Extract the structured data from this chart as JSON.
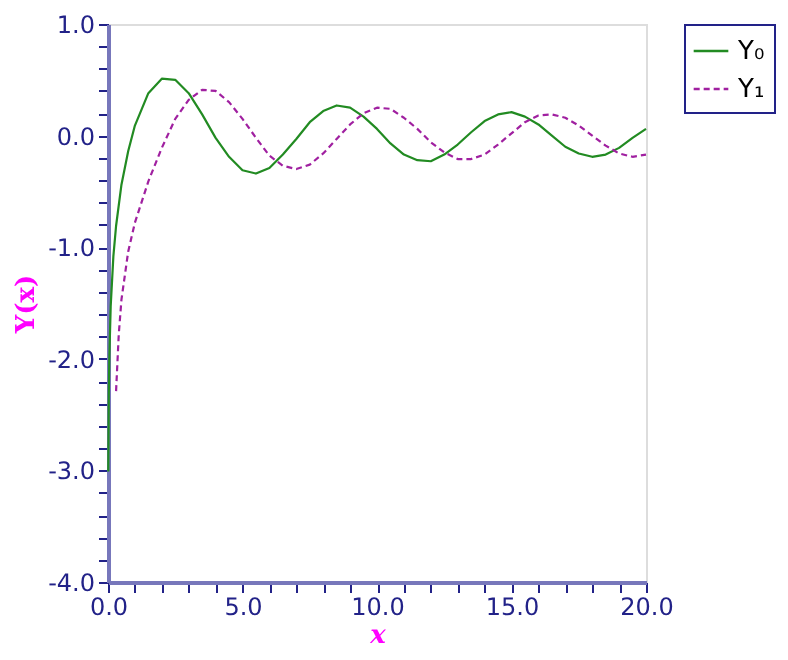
{
  "chart_data": {
    "type": "line",
    "xlabel": "x",
    "ylabel": "Y(x)",
    "xlim": [
      0,
      20
    ],
    "ylim": [
      -4,
      1
    ],
    "xticks": [
      {
        "value": 0,
        "label": "0.0"
      },
      {
        "value": 1,
        "label": null
      },
      {
        "value": 2,
        "label": null
      },
      {
        "value": 3,
        "label": null
      },
      {
        "value": 4,
        "label": null
      },
      {
        "value": 5,
        "label": "5.0"
      },
      {
        "value": 6,
        "label": null
      },
      {
        "value": 7,
        "label": null
      },
      {
        "value": 8,
        "label": null
      },
      {
        "value": 9,
        "label": null
      },
      {
        "value": 10,
        "label": "10.0"
      },
      {
        "value": 11,
        "label": null
      },
      {
        "value": 12,
        "label": null
      },
      {
        "value": 13,
        "label": null
      },
      {
        "value": 14,
        "label": null
      },
      {
        "value": 15,
        "label": "15.0"
      },
      {
        "value": 16,
        "label": null
      },
      {
        "value": 17,
        "label": null
      },
      {
        "value": 18,
        "label": null
      },
      {
        "value": 19,
        "label": null
      },
      {
        "value": 20,
        "label": "20.0"
      }
    ],
    "yticks": [
      {
        "value": -4,
        "label": "-4.0"
      },
      {
        "value": -3.8,
        "label": null
      },
      {
        "value": -3.6,
        "label": null
      },
      {
        "value": -3.4,
        "label": null
      },
      {
        "value": -3.2,
        "label": null
      },
      {
        "value": -3,
        "label": "-3.0"
      },
      {
        "value": -2.8,
        "label": null
      },
      {
        "value": -2.6,
        "label": null
      },
      {
        "value": -2.4,
        "label": null
      },
      {
        "value": -2.2,
        "label": null
      },
      {
        "value": -2,
        "label": "-2.0"
      },
      {
        "value": -1.8,
        "label": null
      },
      {
        "value": -1.6,
        "label": null
      },
      {
        "value": -1.4,
        "label": null
      },
      {
        "value": -1.2,
        "label": null
      },
      {
        "value": -1,
        "label": "-1.0"
      },
      {
        "value": -0.8,
        "label": null
      },
      {
        "value": -0.6,
        "label": null
      },
      {
        "value": -0.4,
        "label": null
      },
      {
        "value": -0.2,
        "label": null
      },
      {
        "value": 0,
        "label": "0.0"
      },
      {
        "value": 0.2,
        "label": null
      },
      {
        "value": 0.4,
        "label": null
      },
      {
        "value": 0.6,
        "label": null
      },
      {
        "value": 0.8,
        "label": null
      },
      {
        "value": 1,
        "label": "1.0"
      }
    ],
    "grid": false,
    "legend": "top right",
    "marker": "none",
    "series": [
      {
        "name": "Y₀",
        "color": "#228b22",
        "line_style": "solid",
        "x": [
          0.01,
          0.03,
          0.05,
          0.1,
          0.2,
          0.3,
          0.5,
          0.75,
          1,
          1.5,
          2,
          2.5,
          3,
          3.5,
          4,
          4.5,
          5,
          5.5,
          6,
          6.5,
          7,
          7.5,
          8,
          8.5,
          9,
          9.5,
          10,
          10.5,
          11,
          11.5,
          12,
          12.5,
          13,
          13.5,
          14,
          14.5,
          15,
          15.5,
          16,
          16.5,
          17,
          17.5,
          18,
          18.5,
          19,
          19.5,
          20
        ],
        "values": [
          -3.01,
          -2.31,
          -1.98,
          -1.53,
          -1.08,
          -0.81,
          -0.44,
          -0.14,
          0.09,
          0.38,
          0.51,
          0.5,
          0.38,
          0.19,
          -0.02,
          -0.19,
          -0.31,
          -0.34,
          -0.29,
          -0.17,
          -0.03,
          0.12,
          0.22,
          0.27,
          0.25,
          0.17,
          0.06,
          -0.07,
          -0.17,
          -0.22,
          -0.23,
          -0.17,
          -0.08,
          0.03,
          0.13,
          0.19,
          0.21,
          0.17,
          0.1,
          0.0,
          -0.1,
          -0.16,
          -0.19,
          -0.17,
          -0.11,
          -0.02,
          0.06
        ]
      },
      {
        "name": "Y₁",
        "color": "#a020a0",
        "line_style": "dashed",
        "x": [
          0.3,
          0.4,
          0.5,
          0.75,
          1,
          1.5,
          2,
          2.5,
          3,
          3.5,
          4,
          4.5,
          5,
          5.5,
          6,
          6.5,
          7,
          7.5,
          8,
          8.5,
          9,
          9.5,
          10,
          10.5,
          11,
          11.5,
          12,
          12.5,
          13,
          13.5,
          14,
          14.5,
          15,
          15.5,
          16,
          16.5,
          17,
          17.5,
          18,
          18.5,
          19,
          19.5,
          20
        ],
        "values": [
          -2.29,
          -1.78,
          -1.47,
          -1.04,
          -0.78,
          -0.41,
          -0.11,
          0.15,
          0.32,
          0.41,
          0.4,
          0.3,
          0.15,
          -0.02,
          -0.18,
          -0.27,
          -0.3,
          -0.26,
          -0.16,
          -0.03,
          0.1,
          0.2,
          0.25,
          0.24,
          0.16,
          0.06,
          -0.06,
          -0.15,
          -0.21,
          -0.21,
          -0.17,
          -0.08,
          0.02,
          0.12,
          0.18,
          0.19,
          0.16,
          0.09,
          0.0,
          -0.09,
          -0.16,
          -0.19,
          -0.17
        ]
      }
    ]
  }
}
